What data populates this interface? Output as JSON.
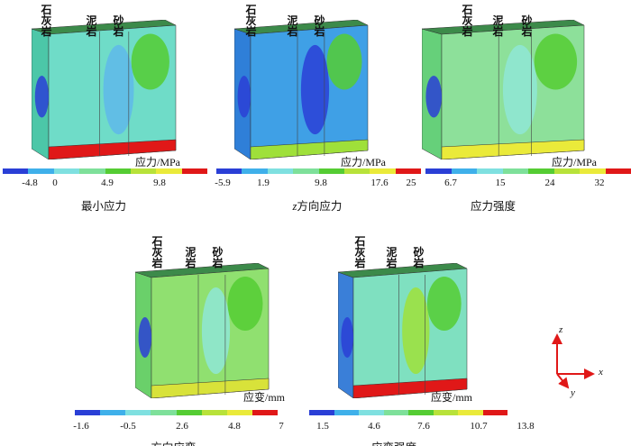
{
  "rock_labels": {
    "limestone": "石灰岩",
    "mudstone": "泥岩",
    "sandstone": "砂岩"
  },
  "colormap": [
    "#2a3fd6",
    "#3fb0ea",
    "#7fe0e0",
    "#7ee09a",
    "#55cc33",
    "#b8e23a",
    "#eaea3a",
    "#e01818"
  ],
  "panels": [
    {
      "title_prefix": "",
      "title": "最小应力",
      "unit": "应力/MPa",
      "ticks": [
        "-4.8",
        "0",
        "4.9",
        "9.8"
      ],
      "base": "#6fdcc8",
      "side": "#4cc7a8",
      "accent": "#5fb8ea",
      "bottom": "#e01818"
    },
    {
      "title_prefix": "z",
      "title": "方向应力",
      "unit": "应力/MPa",
      "ticks": [
        "-5.9",
        "1.9",
        "9.8",
        "17.6",
        "25"
      ],
      "base": "#3fa0e6",
      "side": "#2f7fd8",
      "accent": "#2a3fd6",
      "bottom": "#9fe03a"
    },
    {
      "title_prefix": "",
      "title": "应力强度",
      "unit": "应力/MPa",
      "ticks": [
        "6.7",
        "15",
        "24",
        "32"
      ],
      "base": "#8de09a",
      "side": "#66d07a",
      "accent": "#8fe6d6",
      "bottom": "#eaea3a"
    },
    {
      "title_prefix": "z",
      "title": "方向应变",
      "unit": "应变/mm",
      "ticks": [
        "-1.6",
        "-0.5",
        "2.6",
        "4.8",
        "7"
      ],
      "base": "#90e070",
      "side": "#6ad06a",
      "accent": "#8fe6d6",
      "bottom": "#d8e23a"
    },
    {
      "title_prefix": "",
      "title": "应变强度",
      "unit": "应变/mm",
      "ticks": [
        "1.5",
        "4.6",
        "7.6",
        "10.7",
        "13.8"
      ],
      "base": "#7fe0c0",
      "side": "#3a7fd8",
      "accent": "#9fe03a",
      "bottom": "#e01818"
    }
  ],
  "axes": {
    "z": "z",
    "x": "x",
    "y": "y",
    "color": "#e01818"
  }
}
